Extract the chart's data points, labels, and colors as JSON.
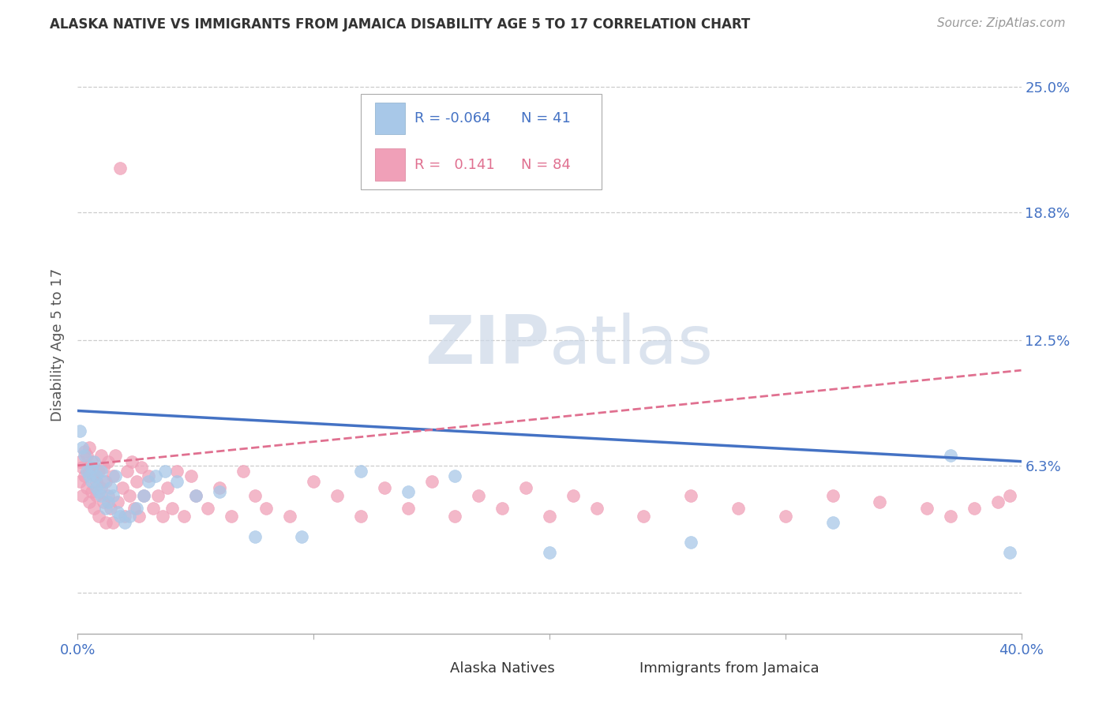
{
  "title": "ALASKA NATIVE VS IMMIGRANTS FROM JAMAICA DISABILITY AGE 5 TO 17 CORRELATION CHART",
  "source": "Source: ZipAtlas.com",
  "ylabel": "Disability Age 5 to 17",
  "xlim": [
    0.0,
    0.4
  ],
  "ylim": [
    -0.02,
    0.265
  ],
  "color_blue": "#a8c8e8",
  "color_pink": "#f0a0b8",
  "line_blue": "#4472C4",
  "line_pink": "#E07090",
  "watermark_color": "#ccd8e8",
  "alaska_x": [
    0.001,
    0.002,
    0.003,
    0.004,
    0.005,
    0.006,
    0.006,
    0.007,
    0.008,
    0.008,
    0.009,
    0.01,
    0.01,
    0.011,
    0.012,
    0.013,
    0.014,
    0.015,
    0.016,
    0.017,
    0.018,
    0.02,
    0.022,
    0.025,
    0.028,
    0.03,
    0.033,
    0.037,
    0.042,
    0.05,
    0.06,
    0.075,
    0.095,
    0.12,
    0.14,
    0.16,
    0.2,
    0.26,
    0.32,
    0.37,
    0.395
  ],
  "alaska_y": [
    0.08,
    0.072,
    0.068,
    0.06,
    0.058,
    0.055,
    0.062,
    0.065,
    0.058,
    0.052,
    0.05,
    0.048,
    0.06,
    0.055,
    0.042,
    0.045,
    0.052,
    0.048,
    0.058,
    0.04,
    0.038,
    0.035,
    0.038,
    0.042,
    0.048,
    0.055,
    0.058,
    0.06,
    0.055,
    0.048,
    0.05,
    0.028,
    0.028,
    0.06,
    0.05,
    0.058,
    0.02,
    0.025,
    0.035,
    0.068,
    0.02
  ],
  "jamaica_x": [
    0.001,
    0.001,
    0.002,
    0.002,
    0.003,
    0.003,
    0.004,
    0.004,
    0.005,
    0.005,
    0.005,
    0.006,
    0.006,
    0.007,
    0.007,
    0.008,
    0.008,
    0.009,
    0.009,
    0.01,
    0.01,
    0.011,
    0.011,
    0.012,
    0.012,
    0.013,
    0.013,
    0.014,
    0.015,
    0.015,
    0.016,
    0.017,
    0.018,
    0.019,
    0.02,
    0.021,
    0.022,
    0.023,
    0.024,
    0.025,
    0.026,
    0.027,
    0.028,
    0.03,
    0.032,
    0.034,
    0.036,
    0.038,
    0.04,
    0.042,
    0.045,
    0.048,
    0.05,
    0.055,
    0.06,
    0.065,
    0.07,
    0.075,
    0.08,
    0.09,
    0.1,
    0.11,
    0.12,
    0.13,
    0.14,
    0.15,
    0.16,
    0.17,
    0.18,
    0.19,
    0.2,
    0.21,
    0.22,
    0.24,
    0.26,
    0.28,
    0.3,
    0.32,
    0.34,
    0.36,
    0.37,
    0.38,
    0.39,
    0.395
  ],
  "jamaica_y": [
    0.055,
    0.065,
    0.048,
    0.062,
    0.058,
    0.07,
    0.052,
    0.068,
    0.06,
    0.045,
    0.072,
    0.05,
    0.065,
    0.042,
    0.058,
    0.055,
    0.048,
    0.06,
    0.038,
    0.052,
    0.068,
    0.045,
    0.062,
    0.035,
    0.055,
    0.048,
    0.065,
    0.042,
    0.058,
    0.035,
    0.068,
    0.045,
    0.21,
    0.052,
    0.038,
    0.06,
    0.048,
    0.065,
    0.042,
    0.055,
    0.038,
    0.062,
    0.048,
    0.058,
    0.042,
    0.048,
    0.038,
    0.052,
    0.042,
    0.06,
    0.038,
    0.058,
    0.048,
    0.042,
    0.052,
    0.038,
    0.06,
    0.048,
    0.042,
    0.038,
    0.055,
    0.048,
    0.038,
    0.052,
    0.042,
    0.055,
    0.038,
    0.048,
    0.042,
    0.052,
    0.038,
    0.048,
    0.042,
    0.038,
    0.048,
    0.042,
    0.038,
    0.048,
    0.045,
    0.042,
    0.038,
    0.042,
    0.045,
    0.048
  ]
}
